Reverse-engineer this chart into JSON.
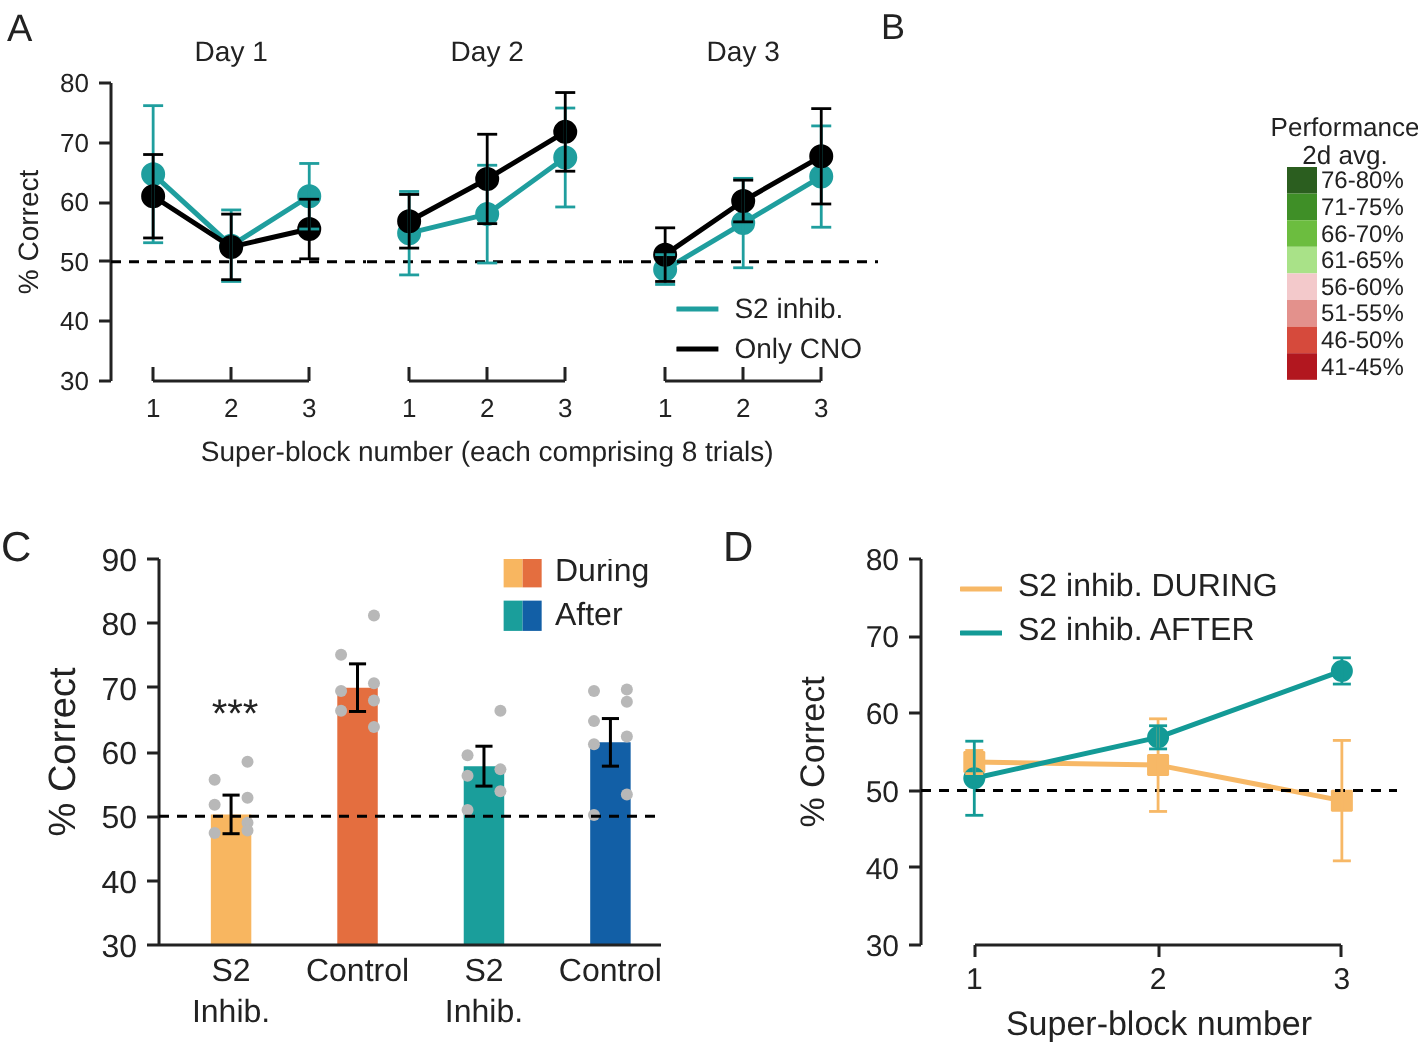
{
  "chart_data": [
    {
      "type": "line",
      "title": "Day 1",
      "categories": [
        "1",
        "2",
        "3"
      ],
      "ylabel": "% Correct",
      "ylim": [
        30,
        80
      ],
      "yticks": [
        30,
        40,
        50,
        60,
        70,
        80
      ],
      "marker": "circle",
      "ref_lines": [
        {
          "axis": "y",
          "value": 50,
          "color": "#000000",
          "line_style": "dashed"
        }
      ],
      "annotations": [
        "A"
      ],
      "series": [
        {
          "color": "#1f9e9e",
          "values": [
            64.7,
            52.7,
            61.0
          ],
          "errors": [
            11.5,
            6.0,
            5.5
          ]
        },
        {
          "color": "#000000",
          "values": [
            61.0,
            52.5,
            55.5
          ],
          "errors": [
            7.0,
            5.5,
            5.0
          ]
        }
      ]
    },
    {
      "type": "line",
      "title": "Day 2",
      "categories": [
        "1",
        "2",
        "3"
      ],
      "xlabel": "Super-block number (each comprising 8 trials)",
      "ylim": [
        30,
        80
      ],
      "tick_labels": "x",
      "marker": "circle",
      "ref_lines": [
        {
          "axis": "y",
          "value": 50,
          "color": "#000000",
          "line_style": "dashed"
        }
      ],
      "series": [
        {
          "color": "#1f9e9e",
          "values": [
            54.8,
            58.0,
            67.5
          ],
          "errors": [
            7.0,
            8.2,
            8.3
          ]
        },
        {
          "color": "#000000",
          "values": [
            56.8,
            63.9,
            71.8
          ],
          "errors": [
            4.5,
            7.5,
            6.6
          ]
        }
      ]
    },
    {
      "type": "line",
      "title": "Day 3",
      "categories": [
        "1",
        "2",
        "3"
      ],
      "ylim": [
        30,
        80
      ],
      "tick_labels": "x",
      "marker": "circle",
      "legend": "bottom right",
      "ref_lines": [
        {
          "axis": "y",
          "value": 50,
          "color": "#000000",
          "line_style": "dashed"
        }
      ],
      "series": [
        {
          "name": "S2 inhib.",
          "color": "#1f9e9e",
          "values": [
            48.7,
            56.5,
            64.3
          ],
          "errors": [
            2.5,
            7.5,
            8.5
          ]
        },
        {
          "name": "Only CNO",
          "color": "#000000",
          "values": [
            51.2,
            60.2,
            67.7
          ],
          "errors": [
            4.5,
            3.5,
            8.0
          ]
        }
      ]
    },
    {
      "type": "other",
      "legend_title": "Performance\n2d avg.",
      "categories": [
        "76-80%",
        "71-75%",
        "66-70%",
        "61-65%",
        "56-60%",
        "51-55%",
        "46-50%",
        "41-45%"
      ],
      "colors": [
        "#2b5e1f",
        "#3f8f27",
        "#6cbd3f",
        "#a9e288",
        "#f3c9cb",
        "#e3918c",
        "#d64a3c",
        "#b2171f"
      ],
      "annotations": [
        "B"
      ]
    },
    {
      "type": "bar",
      "categories": [
        "S2\nInhib.",
        "Control",
        "S2\nInhib.",
        "Control"
      ],
      "ylabel": "% Correct",
      "ylim": [
        30,
        90
      ],
      "yticks": [
        30,
        40,
        50,
        60,
        70,
        80,
        90
      ],
      "legend": "top right",
      "ref_lines": [
        {
          "axis": "y",
          "value": 50,
          "color": "#000000",
          "line_style": "dashed"
        }
      ],
      "annotations": [
        "C",
        "***"
      ],
      "series": [
        {
          "name": "During",
          "colors": [
            "#f8b660",
            "#e46e3f",
            null,
            null
          ],
          "values": [
            50.3,
            70.0,
            null,
            null
          ],
          "errors": [
            3.0,
            3.7,
            null,
            null
          ]
        },
        {
          "name": "After",
          "colors": [
            null,
            null,
            "#1a9e9b",
            "#125fa6"
          ],
          "values": [
            null,
            null,
            57.8,
            61.5
          ],
          "errors": [
            null,
            null,
            3.1,
            3.7
          ]
        },
        {
          "type": "scatter",
          "color": "#b8b8b8",
          "values": [
            58.5,
            81.2,
            66.4,
            69.7
          ]
        },
        {
          "type": "scatter",
          "color": "#b8b8b8",
          "values": [
            55.7,
            75.1,
            59.5,
            69.5
          ]
        },
        {
          "type": "scatter",
          "color": "#b8b8b8",
          "values": [
            52.9,
            70.7,
            57.3,
            67.8
          ]
        },
        {
          "type": "scatter",
          "color": "#b8b8b8",
          "values": [
            51.8,
            69.5,
            56.3,
            64.8
          ]
        },
        {
          "type": "scatter",
          "color": "#b8b8b8",
          "values": [
            49.0,
            68.0,
            53.9,
            62.4
          ]
        },
        {
          "type": "scatter",
          "color": "#b8b8b8",
          "values": [
            47.4,
            66.4,
            51.0,
            61.2
          ]
        },
        {
          "type": "scatter",
          "color": "#b8b8b8",
          "values": [
            47.8,
            63.9,
            null,
            53.4
          ]
        },
        {
          "type": "scatter",
          "color": "#b8b8b8",
          "values": [
            null,
            null,
            null,
            50.2
          ]
        }
      ]
    },
    {
      "type": "line",
      "categories": [
        "1",
        "2",
        "3"
      ],
      "xlabel": "Super-block number",
      "ylabel": "% Correct",
      "ylim": [
        30,
        80
      ],
      "yticks": [
        30,
        40,
        50,
        60,
        70,
        80
      ],
      "legend": "top left",
      "ref_lines": [
        {
          "axis": "y",
          "value": 50,
          "color": "#000000",
          "line_style": "dashed"
        }
      ],
      "annotations": [
        "D"
      ],
      "series": [
        {
          "name": "S2 inhib. DURING",
          "color": "#f7b866",
          "marker": "square",
          "values": [
            53.7,
            53.3,
            48.7
          ],
          "errors": [
            1.5,
            6.0,
            7.8
          ]
        },
        {
          "name": "S2 inhib. AFTER",
          "color": "#139a96",
          "marker": "circle",
          "values": [
            51.6,
            56.9,
            65.5
          ],
          "errors": [
            4.8,
            1.5,
            1.7
          ]
        }
      ]
    }
  ]
}
